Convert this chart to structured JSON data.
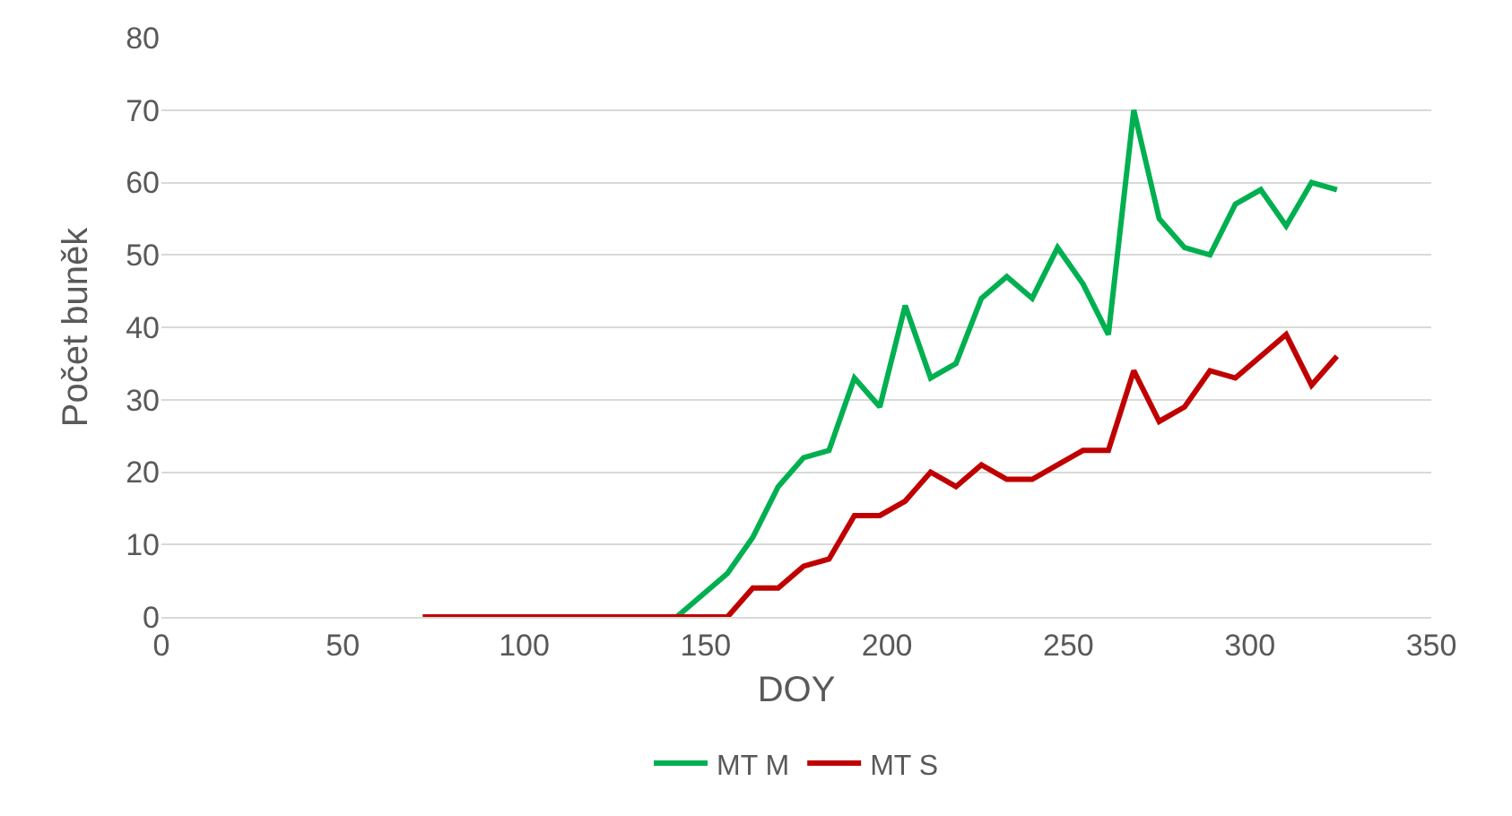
{
  "chart_data": {
    "type": "line",
    "xlabel": "DOY",
    "ylabel": "Počet buněk",
    "xlim": [
      0,
      350
    ],
    "xticks": [
      0,
      50,
      100,
      150,
      200,
      250,
      300,
      350
    ],
    "ylim": [
      0,
      80
    ],
    "yticks": [
      0,
      10,
      20,
      30,
      40,
      50,
      60,
      70,
      80
    ],
    "grid": "y",
    "legend": "bottom",
    "marker": "none",
    "line_style": "solid",
    "series": [
      {
        "name": "MT M",
        "color": "#00b050",
        "x": [
          142,
          149,
          156,
          163,
          170,
          177,
          184,
          191,
          198,
          205,
          212,
          219,
          226,
          233,
          240,
          247,
          254,
          261,
          268,
          275,
          282,
          289,
          296,
          303,
          310,
          317,
          324
        ],
        "values": [
          0,
          3,
          6,
          11,
          18,
          22,
          23,
          33,
          29,
          43,
          33,
          35,
          44,
          47,
          44,
          51,
          46,
          39,
          70,
          55,
          51,
          50,
          57,
          59,
          54,
          60,
          59
        ]
      },
      {
        "name": "MT S",
        "color": "#c00000",
        "x": [
          72,
          79,
          86,
          93,
          100,
          107,
          114,
          121,
          128,
          135,
          142,
          149,
          156,
          163,
          170,
          177,
          184,
          191,
          198,
          205,
          212,
          219,
          226,
          233,
          240,
          247,
          254,
          261,
          268,
          275,
          282,
          289,
          296,
          303,
          310,
          317,
          324
        ],
        "values": [
          0,
          0,
          0,
          0,
          0,
          0,
          0,
          0,
          0,
          0,
          0,
          0,
          0,
          4,
          4,
          7,
          8,
          14,
          14,
          16,
          20,
          18,
          21,
          19,
          19,
          21,
          23,
          23,
          34,
          27,
          29,
          34,
          33,
          36,
          39,
          32,
          36
        ]
      }
    ]
  }
}
